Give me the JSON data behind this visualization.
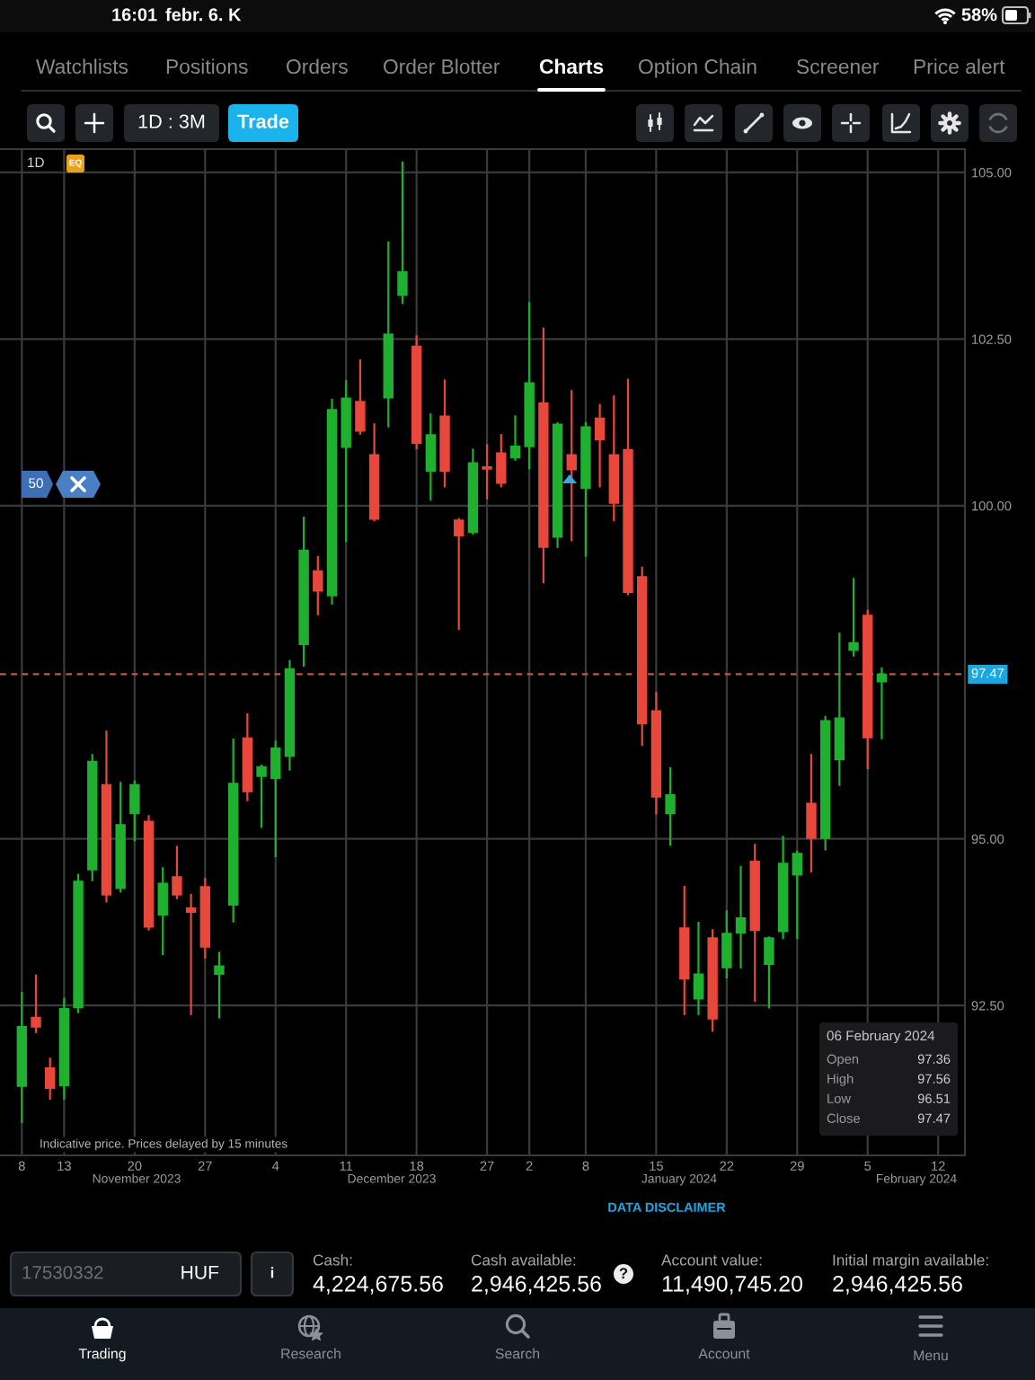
{
  "chart_data": {
    "type": "candlestick",
    "categories": [
      "8",
      null,
      null,
      "13",
      null,
      null,
      null,
      null,
      "20",
      null,
      null,
      null,
      null,
      "27",
      null,
      null,
      null,
      null,
      "4",
      null,
      null,
      null,
      null,
      "11",
      null,
      null,
      null,
      null,
      "18",
      null,
      null,
      null,
      null,
      "27",
      null,
      null,
      "2",
      null,
      null,
      null,
      "8",
      null,
      null,
      null,
      null,
      "15",
      null,
      null,
      null,
      null,
      "22",
      null,
      null,
      null,
      null,
      "29",
      null,
      null,
      null,
      null,
      "5",
      null,
      null,
      null,
      null,
      "12",
      null
    ],
    "ohlc": [
      [
        91.29,
        92.69,
        90.75,
        92.18
      ],
      [
        92.32,
        92.95,
        92.1,
        92.18
      ],
      [
        91.56,
        91.7,
        91.1,
        91.26
      ],
      [
        91.3,
        92.6,
        91.1,
        92.45
      ],
      [
        92.47,
        94.46,
        92.4,
        94.36
      ],
      [
        94.54,
        96.26,
        94.38,
        96.16
      ],
      [
        95.81,
        96.61,
        94.06,
        94.16
      ],
      [
        94.26,
        95.84,
        94.21,
        95.21
      ],
      [
        95.38,
        95.86,
        94.98,
        95.81
      ],
      [
        95.26,
        95.34,
        93.64,
        93.68
      ],
      [
        93.86,
        94.56,
        93.27,
        94.33
      ],
      [
        94.43,
        94.88,
        94.11,
        94.16
      ],
      [
        93.96,
        94.16,
        92.37,
        93.9
      ],
      [
        94.28,
        94.4,
        93.22,
        93.38
      ],
      [
        92.97,
        93.29,
        92.32,
        93.09
      ],
      [
        94.01,
        96.49,
        93.76,
        95.83
      ],
      [
        96.51,
        96.87,
        95.58,
        95.71
      ],
      [
        95.94,
        96.1,
        95.18,
        96.08
      ],
      [
        95.91,
        96.46,
        94.74,
        96.36
      ],
      [
        96.24,
        97.67,
        96.04,
        97.55
      ],
      [
        97.92,
        99.82,
        97.6,
        99.33
      ],
      [
        99.02,
        99.23,
        98.37,
        98.72
      ],
      [
        98.65,
        101.59,
        98.53,
        101.44
      ],
      [
        100.88,
        101.87,
        99.47,
        101.61
      ],
      [
        101.56,
        102.18,
        101.08,
        101.12
      ],
      [
        100.76,
        101.22,
        99.78,
        99.8
      ],
      [
        101.62,
        103.95,
        101.19,
        102.57
      ],
      [
        103.16,
        105.15,
        103.04,
        103.51
      ],
      [
        102.39,
        102.54,
        100.86,
        100.94
      ],
      [
        100.52,
        101.37,
        100.09,
        101.06
      ],
      [
        101.34,
        101.88,
        100.29,
        100.52
      ],
      [
        99.78,
        99.8,
        98.15,
        99.55
      ],
      [
        99.6,
        100.84,
        99.58,
        100.64
      ],
      [
        100.58,
        100.91,
        100.11,
        100.55
      ],
      [
        100.79,
        101.06,
        100.29,
        100.34
      ],
      [
        100.72,
        101.34,
        100.69,
        100.89
      ],
      [
        100.89,
        103.04,
        100.56,
        101.84
      ],
      [
        101.54,
        102.66,
        98.85,
        99.38
      ],
      [
        99.53,
        101.24,
        99.38,
        101.22
      ],
      [
        100.76,
        101.72,
        99.48,
        100.54
      ],
      [
        100.26,
        101.24,
        99.25,
        101.18
      ],
      [
        101.31,
        101.51,
        100.29,
        100.99
      ],
      [
        100.76,
        101.64,
        99.78,
        100.04
      ],
      [
        100.84,
        101.89,
        98.67,
        98.7
      ],
      [
        98.93,
        99.07,
        96.41,
        96.73
      ],
      [
        96.92,
        97.19,
        95.38,
        95.63
      ],
      [
        95.38,
        96.06,
        94.91,
        95.66
      ],
      [
        93.66,
        94.28,
        92.37,
        92.9
      ],
      [
        92.6,
        93.74,
        92.37,
        92.97
      ],
      [
        93.51,
        93.63,
        92.12,
        92.3
      ],
      [
        93.07,
        93.91,
        92.92,
        93.58
      ],
      [
        93.59,
        94.58,
        93.07,
        93.81
      ],
      [
        94.66,
        94.91,
        92.57,
        93.63
      ],
      [
        93.12,
        93.52,
        92.47,
        93.51
      ],
      [
        93.61,
        95.03,
        93.51,
        94.63
      ],
      [
        94.46,
        94.81,
        93.51,
        94.78
      ],
      [
        95.53,
        96.26,
        94.51,
        95.01
      ],
      [
        95.01,
        96.83,
        94.84,
        96.77
      ],
      [
        96.19,
        98.08,
        95.81,
        96.81
      ],
      [
        97.83,
        98.9,
        97.75,
        97.94
      ],
      [
        98.35,
        98.42,
        96.06,
        96.52
      ],
      [
        97.36,
        97.56,
        96.51,
        97.47
      ],
      null,
      null,
      null,
      null,
      null
    ],
    "colors": [
      "#20b030",
      "#e8473c",
      "#e8473c",
      "#20b030",
      "#20b030",
      "#20b030",
      "#e8473c",
      "#20b030",
      "#20b030",
      "#e8473c",
      "#20b030",
      "#e8473c",
      "#e8473c",
      "#e8473c",
      "#20b030",
      "#20b030",
      "#e8473c",
      "#20b030",
      "#20b030",
      "#20b030",
      "#20b030",
      "#e8473c",
      "#20b030",
      "#20b030",
      "#e8473c",
      "#e8473c",
      "#20b030",
      "#20b030",
      "#e8473c",
      "#20b030",
      "#e8473c",
      "#e8473c",
      "#20b030",
      "#e8473c",
      "#e8473c",
      "#20b030",
      "#20b030",
      "#e8473c",
      "#20b030",
      "#e8473c",
      "#20b030",
      "#e8473c",
      "#e8473c",
      "#e8473c",
      "#e8473c",
      "#e8473c",
      "#20b030",
      "#e8473c",
      "#20b030",
      "#e8473c",
      "#20b030",
      "#20b030",
      "#e8473c",
      "#20b030",
      "#20b030",
      "#20b030",
      "#e8473c",
      "#20b030",
      "#20b030",
      "#20b030",
      "#e8473c",
      "#20b030",
      null,
      null,
      null,
      null,
      null
    ],
    "ylim": [
      90.25,
      105.35
    ],
    "yticks": [
      {
        "value": 92.5,
        "label": "92.50"
      },
      {
        "value": 95,
        "label": "95.00"
      },
      {
        "value": 100,
        "label": "100.00"
      },
      {
        "value": 102.5,
        "label": "102.50"
      },
      {
        "value": 105,
        "label": "105.00"
      }
    ],
    "grid": true,
    "ref_lines": [
      {
        "axis": "y",
        "value": 97.47,
        "label": "97.47",
        "color": "#c0574c",
        "line_style": "dashed"
      }
    ],
    "annotations": [
      "16:01",
      "febr. 6. K",
      "58%",
      "Watchlists",
      "Positions",
      "Orders",
      "Order Blotter",
      "Charts",
      "Option Chain",
      "Screener",
      "Price alert",
      "1D : 3M",
      "Trade",
      "1D",
      "EQ",
      "50",
      "06 February 2024",
      "Open",
      "97.36",
      "High",
      "97.56",
      "Low",
      "96.51",
      "Close",
      "97.47",
      "Indicative price. Prices delayed by 15 minutes",
      "November 2023",
      "December 2023",
      "January 2024",
      "February 2024",
      "DATA DISCLAIMER",
      "17530332",
      "HUF",
      "i",
      "Cash:",
      "4,224,675.56",
      "Cash available:",
      "2,946,425.56",
      "?",
      "Account value:",
      "11,490,745.20",
      "Initial margin available:",
      "2,946,425.56",
      "Trading",
      "Research",
      "Search",
      "Account",
      "Menu"
    ]
  }
}
